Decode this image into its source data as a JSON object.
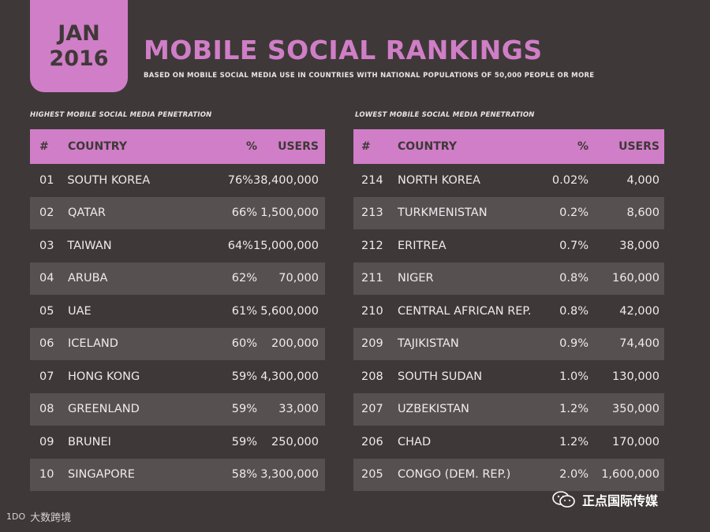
{
  "badge": {
    "month": "JAN",
    "year": "2016"
  },
  "title": "MOBILE SOCIAL RANKINGS",
  "subtitle": "BASED ON MOBILE SOCIAL MEDIA USE IN COUNTRIES WITH NATIONAL POPULATIONS OF 50,000 PEOPLE OR MORE",
  "left": {
    "label": "HIGHEST MOBILE SOCIAL MEDIA PENETRATION",
    "headers": {
      "num": "#",
      "country": "COUNTRY",
      "pct": "%",
      "users": "USERS"
    },
    "rows": [
      {
        "num": "01",
        "country": "SOUTH KOREA",
        "pct": "76%",
        "users": "38,400,000"
      },
      {
        "num": "02",
        "country": "QATAR",
        "pct": "66%",
        "users": "1,500,000"
      },
      {
        "num": "03",
        "country": "TAIWAN",
        "pct": "64%",
        "users": "15,000,000"
      },
      {
        "num": "04",
        "country": "ARUBA",
        "pct": "62%",
        "users": "70,000"
      },
      {
        "num": "05",
        "country": "UAE",
        "pct": "61%",
        "users": "5,600,000"
      },
      {
        "num": "06",
        "country": "ICELAND",
        "pct": "60%",
        "users": "200,000"
      },
      {
        "num": "07",
        "country": "HONG KONG",
        "pct": "59%",
        "users": "4,300,000"
      },
      {
        "num": "08",
        "country": "GREENLAND",
        "pct": "59%",
        "users": "33,000"
      },
      {
        "num": "09",
        "country": "BRUNEI",
        "pct": "59%",
        "users": "250,000"
      },
      {
        "num": "10",
        "country": "SINGAPORE",
        "pct": "58%",
        "users": "3,300,000"
      }
    ]
  },
  "right": {
    "label": "LOWEST MOBILE SOCIAL MEDIA PENETRATION",
    "headers": {
      "num": "#",
      "country": "COUNTRY",
      "pct": "%",
      "users": "USERS"
    },
    "rows": [
      {
        "num": "214",
        "country": "NORTH KOREA",
        "pct": "0.02%",
        "users": "4,000"
      },
      {
        "num": "213",
        "country": "TURKMENISTAN",
        "pct": "0.2%",
        "users": "8,600"
      },
      {
        "num": "212",
        "country": "ERITREA",
        "pct": "0.7%",
        "users": "38,000"
      },
      {
        "num": "211",
        "country": "NIGER",
        "pct": "0.8%",
        "users": "160,000"
      },
      {
        "num": "210",
        "country": "CENTRAL AFRICAN REP.",
        "pct": "0.8%",
        "users": "42,000"
      },
      {
        "num": "209",
        "country": "TAJIKISTAN",
        "pct": "0.9%",
        "users": "74,400"
      },
      {
        "num": "208",
        "country": "SOUTH SUDAN",
        "pct": "1.0%",
        "users": "130,000"
      },
      {
        "num": "207",
        "country": "UZBEKISTAN",
        "pct": "1.2%",
        "users": "350,000"
      },
      {
        "num": "206",
        "country": "CHAD",
        "pct": "1.2%",
        "users": "170,000"
      },
      {
        "num": "205",
        "country": "CONGO (DEM. REP.)",
        "pct": "2.0%",
        "users": "1,600,000"
      }
    ]
  },
  "watermarks": {
    "left_logo": "1DO",
    "left_text": "大数跨境",
    "right_text": "正点国际传媒",
    "right_icon": "wechat-icon"
  },
  "colors": {
    "accent": "#d07ec7",
    "background": "#3f3838",
    "row_alt": "#575051"
  }
}
